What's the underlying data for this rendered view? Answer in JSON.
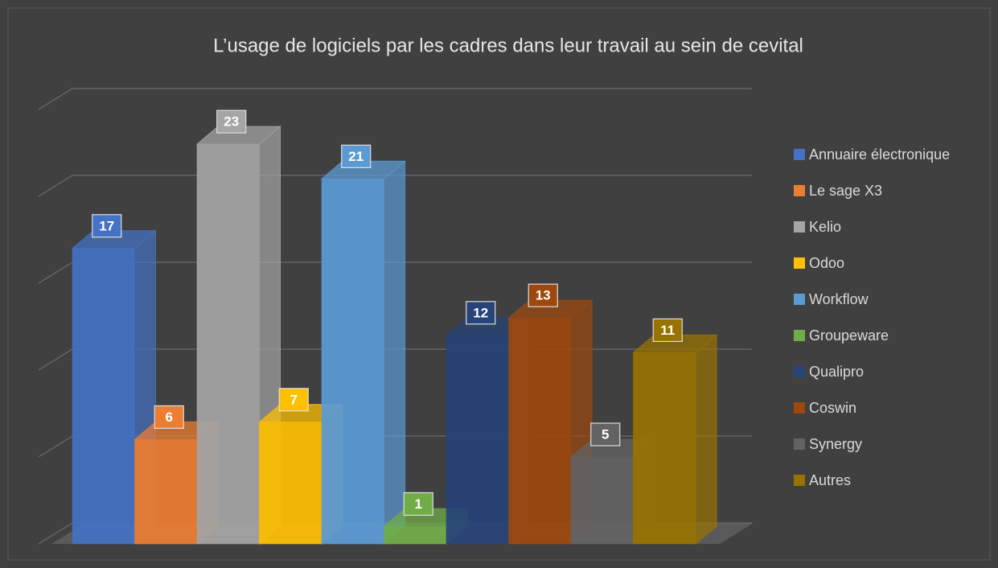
{
  "chart_data": {
    "type": "bar3d",
    "title": "L’usage de logiciels par les cadres dans leur travail au sein de cevital",
    "series": [
      {
        "name": "Annuaire électronique",
        "color": "#4472c4",
        "values": [
          17
        ]
      },
      {
        "name": "Le sage X3",
        "color": "#ed7d31",
        "values": [
          6
        ]
      },
      {
        "name": "Kelio",
        "color": "#a5a5a5",
        "values": [
          23
        ]
      },
      {
        "name": "Odoo",
        "color": "#ffc000",
        "values": [
          7
        ]
      },
      {
        "name": "Workflow",
        "color": "#5b9bd5",
        "values": [
          21
        ]
      },
      {
        "name": "Groupeware",
        "color": "#70ad47",
        "values": [
          1
        ]
      },
      {
        "name": "Qualipro",
        "color": "#264478",
        "values": [
          12
        ]
      },
      {
        "name": "Coswin",
        "color": "#9e480e",
        "values": [
          13
        ]
      },
      {
        "name": "Synergy",
        "color": "#636363",
        "values": [
          5
        ]
      },
      {
        "name": "Autres",
        "color": "#997300",
        "values": [
          11
        ]
      }
    ],
    "ylim": [
      0,
      25
    ],
    "yticks": [
      0,
      5,
      10,
      15,
      20,
      25
    ],
    "grid": true,
    "legend": "right"
  }
}
